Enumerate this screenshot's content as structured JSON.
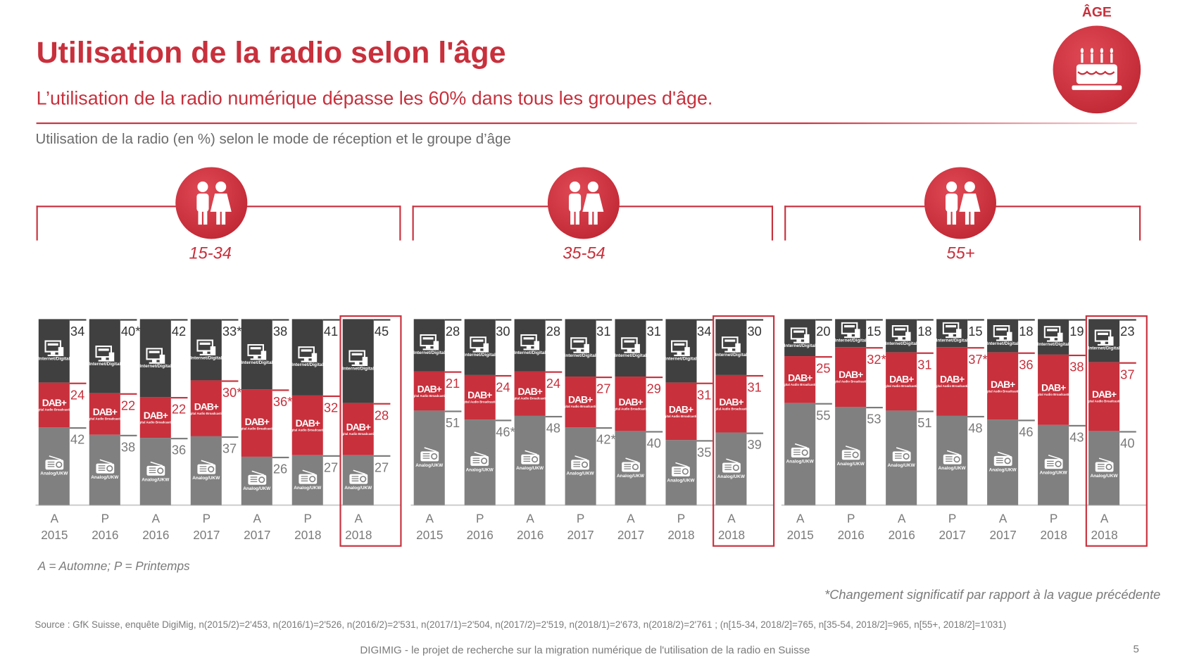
{
  "header": {
    "title": "Utilisation de la radio selon l'âge",
    "subtitle": "L’utilisation de la radio numérique dépasse les 60% dans tous les groupes d'âge.",
    "chart_subtitle": "Utilisation de la radio (en %) selon le mode de réception et le groupe d’âge",
    "age_label": "ÂGE"
  },
  "segment_labels": {
    "internet": "Internet/Digital",
    "dab": "DAB+",
    "dab_sub": "Digital Audio Broadcasting",
    "analog": "Analog/UKW"
  },
  "colors": {
    "internet": "#404040",
    "dab": "#c8303c",
    "analog": "#808080",
    "accent": "#c8303c"
  },
  "chart_data": {
    "type": "bar",
    "stacked": true,
    "title": "Utilisation de la radio (en %) selon le mode de réception et le groupe d’âge",
    "series_order": [
      "Analog/UKW",
      "DAB+",
      "Internet/Digital"
    ],
    "categories": [
      [
        "A",
        "2015"
      ],
      [
        "P",
        "2016"
      ],
      [
        "A",
        "2016"
      ],
      [
        "P",
        "2017"
      ],
      [
        "A",
        "2017"
      ],
      [
        "P",
        "2018"
      ],
      [
        "A",
        "2018"
      ]
    ],
    "highlighted_category": 6,
    "groups": [
      {
        "name": "15-34",
        "internet": [
          "34",
          "40*",
          "42",
          "33*",
          "38",
          "41",
          "45"
        ],
        "dab": [
          "24",
          "22",
          "22",
          "30*",
          "36*",
          "32",
          "28"
        ],
        "analog": [
          "42",
          "38",
          "36",
          "37",
          "26",
          "27",
          "27"
        ]
      },
      {
        "name": "35-54",
        "internet": [
          "28",
          "30",
          "28",
          "31",
          "31",
          "34",
          "30"
        ],
        "dab": [
          "21",
          "24",
          "24",
          "27",
          "29",
          "31",
          "31"
        ],
        "analog": [
          "51",
          "46*",
          "48",
          "42*",
          "40",
          "35",
          "39"
        ]
      },
      {
        "name": "55+",
        "internet": [
          "20",
          "15",
          "18",
          "15",
          "18",
          "19",
          "23"
        ],
        "dab": [
          "25",
          "32*",
          "31",
          "37*",
          "36",
          "38",
          "37"
        ],
        "analog": [
          "55",
          "53",
          "51",
          "48",
          "46",
          "43",
          "40"
        ]
      }
    ]
  },
  "footnotes": {
    "legend": "A = Automne; P = Printemps",
    "significance": "*Changement significatif par rapport à la vague précédente",
    "source": "Source : GfK Suisse, enquête DigiMig, n(2015/2)=2'453, n(2016/1)=2'526, n(2016/2)=2'531, n(2017/1)=2'504, n(2017/2)=2'519, n(2018/1)=2'673, n(2018/2)=2'761 ; (n[15-34, 2018/2]=765, n[35-54, 2018/2]=965, n[55+, 2018/2]=1'031)",
    "bottom": "DIGIMIG - le projet de recherche sur la migration numérique de l'utilisation de la radio en Suisse",
    "page": "5"
  }
}
